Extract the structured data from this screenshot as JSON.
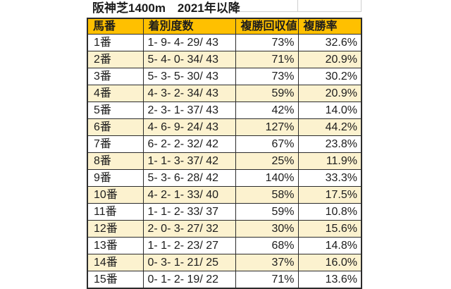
{
  "chart_data": {
    "type": "table",
    "title": "阪神芝1400m　2021年以降",
    "columns": [
      "馬番",
      "着別度数",
      "複勝回収値",
      "複勝率"
    ],
    "rows": [
      [
        "1番",
        "1- 9- 4- 29/ 43",
        "73%",
        "32.6%"
      ],
      [
        "2番",
        "5- 4- 0- 34/ 43",
        "71%",
        "20.9%"
      ],
      [
        "3番",
        "5- 3- 5- 30/ 43",
        "73%",
        "30.2%"
      ],
      [
        "4番",
        "4- 3- 2- 34/ 43",
        "59%",
        "20.9%"
      ],
      [
        "5番",
        "2- 3- 1- 37/ 43",
        "42%",
        "14.0%"
      ],
      [
        "6番",
        "4- 6- 9- 24/ 43",
        "127%",
        "44.2%"
      ],
      [
        "7番",
        "6- 2- 2- 32/ 42",
        "67%",
        "23.8%"
      ],
      [
        "8番",
        "1- 1- 3- 37/ 42",
        "25%",
        "11.9%"
      ],
      [
        "9番",
        "5- 3- 6- 28/ 42",
        "140%",
        "33.3%"
      ],
      [
        "10番",
        "4- 2- 1- 33/ 40",
        "58%",
        "17.5%"
      ],
      [
        "11番",
        "1- 1- 2- 33/ 37",
        "59%",
        "10.8%"
      ],
      [
        "12番",
        "2- 0- 3- 27/ 32",
        "30%",
        "15.6%"
      ],
      [
        "13番",
        "1- 1- 2- 23/ 27",
        "68%",
        "14.8%"
      ],
      [
        "14番",
        "0- 3- 1- 21/ 25",
        "37%",
        "16.0%"
      ],
      [
        "15番",
        "0- 1- 2- 19/ 22",
        "71%",
        "13.6%"
      ]
    ],
    "layout": {
      "row_striping": "alternate rows shaded (2番, 4番, ... shaded)",
      "alignment": {
        "馬番": "left",
        "着別度数": "left",
        "複勝回収値": "right",
        "複勝率": "right"
      },
      "grid": "all cell borders dark, title row has faint gray gridlines"
    }
  },
  "colors": {
    "header_fill": "#FFC000",
    "alt_row_fill": "#FCF2CF",
    "border": "#2B2B2B",
    "gridline": "#CFCFCF",
    "text": "#1C1C1C",
    "background": "#FFFFFF"
  }
}
